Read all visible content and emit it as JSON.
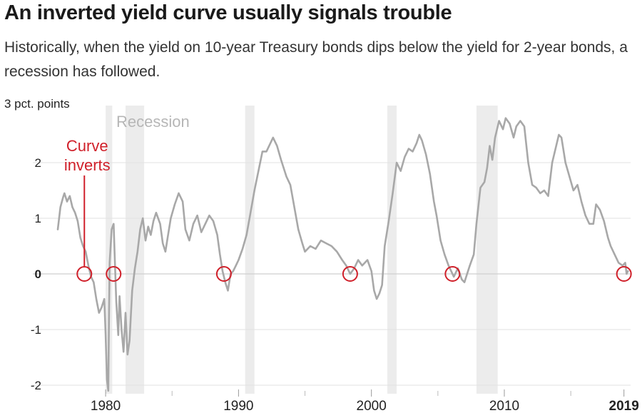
{
  "header": {
    "title": "An inverted yield curve usually signals trouble",
    "subtitle": "Historically, when the yield on 10-year Treasury bonds dips below the yield for 2-year bonds, a recession has followed."
  },
  "chart_data": {
    "type": "line",
    "title": "An inverted yield curve usually signals trouble",
    "subtitle": "Historically, when the yield on 10-year Treasury bonds dips below the yield for 2-year bonds, a recession has followed.",
    "xlabel": "",
    "ylabel": "",
    "y_unit_label": "3 pct. points",
    "xlim": [
      1976.4,
      2019.5
    ],
    "ylim": [
      -2.2,
      3.0
    ],
    "x_ticks": [
      1980,
      1990,
      2000,
      2010,
      2019
    ],
    "x_tick_labels": [
      "1980",
      "1990",
      "2000",
      "2010",
      "2019"
    ],
    "x_minor_ticks": [
      1985,
      1995,
      2005,
      2015
    ],
    "y_ticks": [
      -2,
      -1,
      0,
      1,
      2
    ],
    "y_tick_labels": [
      "-2",
      "-1",
      "0",
      "1",
      "2"
    ],
    "grid": true,
    "colors": {
      "line": "#a8a8a8",
      "recession": "#ececec",
      "accent": "#d0202a",
      "grid": "#e2e2e2",
      "zero": "#cfcfcf"
    },
    "recessions": [
      {
        "start": 1980.0,
        "end": 1980.5
      },
      {
        "start": 1981.5,
        "end": 1982.9
      },
      {
        "start": 1990.5,
        "end": 1991.2
      },
      {
        "start": 2001.2,
        "end": 2001.9
      },
      {
        "start": 2007.9,
        "end": 2009.5
      }
    ],
    "recession_label": "Recession",
    "annotation": {
      "text_lines": [
        "Curve",
        "inverts"
      ],
      "x": 1978.4,
      "y": 0
    },
    "inversions": [
      1978.4,
      1980.6,
      1988.9,
      1998.4,
      2006.1,
      2019.0
    ],
    "series": [
      {
        "values": [
          [
            1976.4,
            0.8
          ],
          [
            1976.6,
            1.2
          ],
          [
            1976.8,
            1.38
          ],
          [
            1976.9,
            1.45
          ],
          [
            1977.1,
            1.3
          ],
          [
            1977.3,
            1.4
          ],
          [
            1977.5,
            1.2
          ],
          [
            1977.7,
            1.1
          ],
          [
            1977.9,
            0.95
          ],
          [
            1978.1,
            0.65
          ],
          [
            1978.3,
            0.5
          ],
          [
            1978.5,
            0.4
          ],
          [
            1978.7,
            0.15
          ],
          [
            1978.9,
            -0.05
          ],
          [
            1979.1,
            -0.15
          ],
          [
            1979.3,
            -0.45
          ],
          [
            1979.5,
            -0.7
          ],
          [
            1979.7,
            -0.6
          ],
          [
            1979.9,
            -0.45
          ],
          [
            1980.0,
            -1.1
          ],
          [
            1980.1,
            -1.9
          ],
          [
            1980.2,
            -2.1
          ],
          [
            1980.25,
            -0.9
          ],
          [
            1980.3,
            0.2
          ],
          [
            1980.45,
            0.8
          ],
          [
            1980.6,
            0.9
          ],
          [
            1980.7,
            0.2
          ],
          [
            1980.8,
            -0.5
          ],
          [
            1980.95,
            -1.1
          ],
          [
            1981.05,
            -0.4
          ],
          [
            1981.2,
            -1.0
          ],
          [
            1981.35,
            -1.4
          ],
          [
            1981.5,
            -0.7
          ],
          [
            1981.65,
            -1.45
          ],
          [
            1981.8,
            -1.2
          ],
          [
            1982.0,
            -0.3
          ],
          [
            1982.2,
            0.1
          ],
          [
            1982.4,
            0.4
          ],
          [
            1982.6,
            0.8
          ],
          [
            1982.8,
            1.0
          ],
          [
            1983.0,
            0.6
          ],
          [
            1983.2,
            0.85
          ],
          [
            1983.4,
            0.7
          ],
          [
            1983.6,
            0.95
          ],
          [
            1983.8,
            1.1
          ],
          [
            1984.1,
            0.9
          ],
          [
            1984.3,
            0.55
          ],
          [
            1984.5,
            0.4
          ],
          [
            1984.7,
            0.7
          ],
          [
            1984.9,
            1.0
          ],
          [
            1985.2,
            1.25
          ],
          [
            1985.5,
            1.45
          ],
          [
            1985.8,
            1.3
          ],
          [
            1986.0,
            0.8
          ],
          [
            1986.3,
            0.6
          ],
          [
            1986.6,
            0.9
          ],
          [
            1986.9,
            1.05
          ],
          [
            1987.2,
            0.75
          ],
          [
            1987.5,
            0.9
          ],
          [
            1987.8,
            1.05
          ],
          [
            1988.1,
            0.95
          ],
          [
            1988.4,
            0.7
          ],
          [
            1988.6,
            0.35
          ],
          [
            1988.8,
            0.05
          ],
          [
            1989.0,
            -0.15
          ],
          [
            1989.2,
            -0.3
          ],
          [
            1989.4,
            0.0
          ],
          [
            1989.6,
            0.05
          ],
          [
            1989.8,
            0.15
          ],
          [
            1990.0,
            0.25
          ],
          [
            1990.3,
            0.45
          ],
          [
            1990.6,
            0.7
          ],
          [
            1990.9,
            1.1
          ],
          [
            1991.2,
            1.5
          ],
          [
            1991.5,
            1.85
          ],
          [
            1991.8,
            2.2
          ],
          [
            1992.1,
            2.2
          ],
          [
            1992.4,
            2.35
          ],
          [
            1992.6,
            2.45
          ],
          [
            1992.9,
            2.3
          ],
          [
            1993.2,
            2.05
          ],
          [
            1993.6,
            1.75
          ],
          [
            1993.9,
            1.6
          ],
          [
            1994.2,
            1.2
          ],
          [
            1994.5,
            0.8
          ],
          [
            1994.8,
            0.55
          ],
          [
            1995.0,
            0.4
          ],
          [
            1995.4,
            0.5
          ],
          [
            1995.8,
            0.45
          ],
          [
            1996.2,
            0.6
          ],
          [
            1996.6,
            0.55
          ],
          [
            1997.0,
            0.5
          ],
          [
            1997.4,
            0.4
          ],
          [
            1997.8,
            0.25
          ],
          [
            1998.1,
            0.15
          ],
          [
            1998.4,
            0.0
          ],
          [
            1998.7,
            0.1
          ],
          [
            1999.0,
            0.25
          ],
          [
            1999.3,
            0.15
          ],
          [
            1999.7,
            0.25
          ],
          [
            2000.0,
            0.05
          ],
          [
            2000.2,
            -0.3
          ],
          [
            2000.4,
            -0.45
          ],
          [
            2000.6,
            -0.35
          ],
          [
            2000.8,
            -0.2
          ],
          [
            2001.0,
            0.5
          ],
          [
            2001.3,
            0.95
          ],
          [
            2001.6,
            1.45
          ],
          [
            2001.9,
            2.0
          ],
          [
            2002.2,
            1.85
          ],
          [
            2002.5,
            2.1
          ],
          [
            2002.8,
            2.25
          ],
          [
            2003.1,
            2.2
          ],
          [
            2003.4,
            2.35
          ],
          [
            2003.6,
            2.5
          ],
          [
            2003.8,
            2.4
          ],
          [
            2004.1,
            2.15
          ],
          [
            2004.4,
            1.8
          ],
          [
            2004.7,
            1.3
          ],
          [
            2004.9,
            1.05
          ],
          [
            2005.2,
            0.6
          ],
          [
            2005.5,
            0.35
          ],
          [
            2005.8,
            0.15
          ],
          [
            2006.0,
            0.05
          ],
          [
            2006.2,
            -0.05
          ],
          [
            2006.5,
            0.1
          ],
          [
            2006.8,
            -0.1
          ],
          [
            2007.0,
            -0.15
          ],
          [
            2007.2,
            0.0
          ],
          [
            2007.4,
            0.15
          ],
          [
            2007.7,
            0.35
          ],
          [
            2007.9,
            0.9
          ],
          [
            2008.2,
            1.55
          ],
          [
            2008.5,
            1.65
          ],
          [
            2008.7,
            1.9
          ],
          [
            2008.9,
            2.3
          ],
          [
            2009.1,
            2.05
          ],
          [
            2009.3,
            2.45
          ],
          [
            2009.6,
            2.75
          ],
          [
            2009.9,
            2.6
          ],
          [
            2010.1,
            2.8
          ],
          [
            2010.4,
            2.7
          ],
          [
            2010.7,
            2.45
          ],
          [
            2010.9,
            2.65
          ],
          [
            2011.2,
            2.75
          ],
          [
            2011.5,
            2.65
          ],
          [
            2011.8,
            2.0
          ],
          [
            2012.1,
            1.6
          ],
          [
            2012.4,
            1.55
          ],
          [
            2012.7,
            1.45
          ],
          [
            2013.0,
            1.5
          ],
          [
            2013.3,
            1.4
          ],
          [
            2013.6,
            2.0
          ],
          [
            2013.9,
            2.3
          ],
          [
            2014.1,
            2.5
          ],
          [
            2014.3,
            2.45
          ],
          [
            2014.6,
            2.0
          ],
          [
            2014.9,
            1.75
          ],
          [
            2015.2,
            1.5
          ],
          [
            2015.5,
            1.6
          ],
          [
            2015.8,
            1.3
          ],
          [
            2016.1,
            1.05
          ],
          [
            2016.4,
            0.9
          ],
          [
            2016.7,
            0.9
          ],
          [
            2016.9,
            1.25
          ],
          [
            2017.2,
            1.15
          ],
          [
            2017.5,
            0.95
          ],
          [
            2017.8,
            0.65
          ],
          [
            2018.0,
            0.5
          ],
          [
            2018.3,
            0.35
          ],
          [
            2018.6,
            0.2
          ],
          [
            2018.9,
            0.15
          ],
          [
            2019.1,
            0.2
          ],
          [
            2019.2,
            0.0
          ],
          [
            2019.3,
            0.05
          ]
        ]
      }
    ]
  }
}
